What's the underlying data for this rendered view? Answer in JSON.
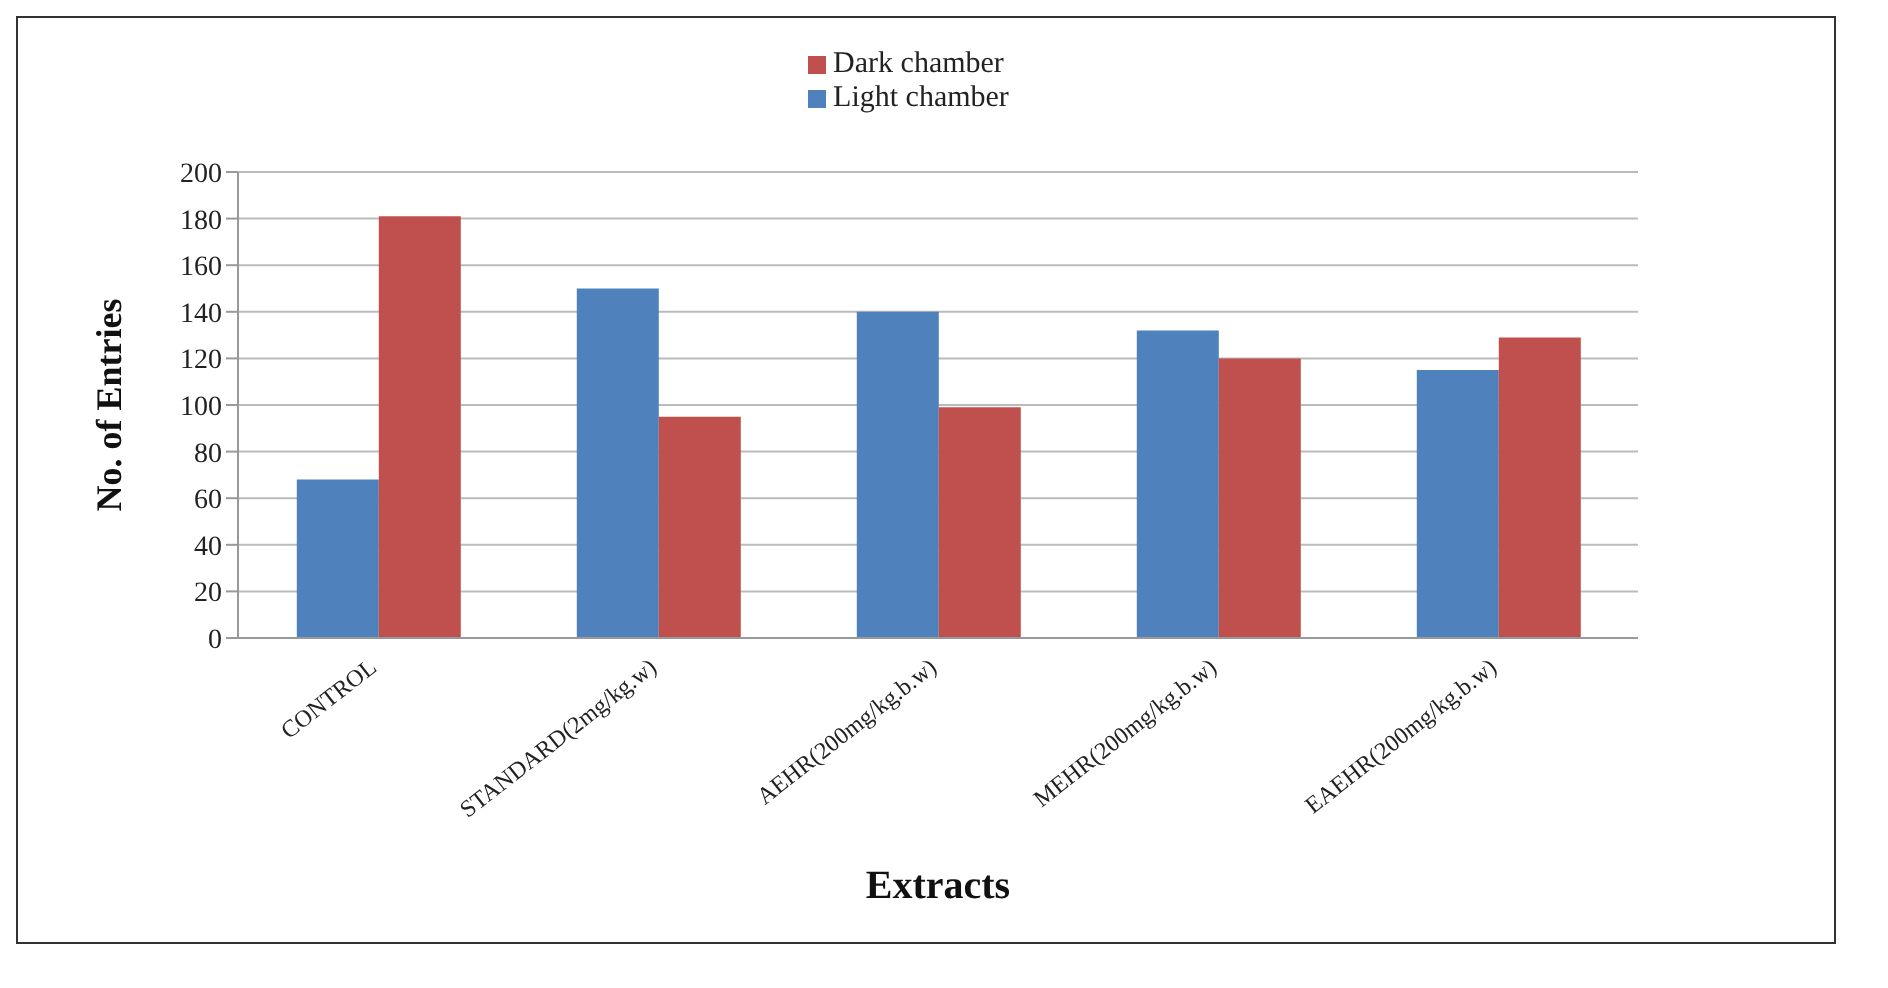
{
  "chart_data": {
    "type": "bar",
    "xlabel": "Extracts",
    "ylabel": "No. of Entries",
    "categories": [
      "CONTROL",
      "STANDARD(2mg/kg.w)",
      "AEHR(200mg/kg.b.w)",
      "MEHR(200mg/kg.b.w)",
      "EAEHR(200mg/kg.b.w)"
    ],
    "series": [
      {
        "name": "Light chamber",
        "color": "#4f81bd",
        "values": [
          68,
          150,
          140,
          132,
          115
        ]
      },
      {
        "name": "Dark chamber",
        "color": "#c0504d",
        "values": [
          181,
          95,
          99,
          120,
          129
        ]
      }
    ],
    "ylim": [
      0,
      200
    ],
    "yticks": [
      0,
      20,
      40,
      60,
      80,
      100,
      120,
      140,
      160,
      180,
      200
    ],
    "grid": "y",
    "legend": "top"
  }
}
